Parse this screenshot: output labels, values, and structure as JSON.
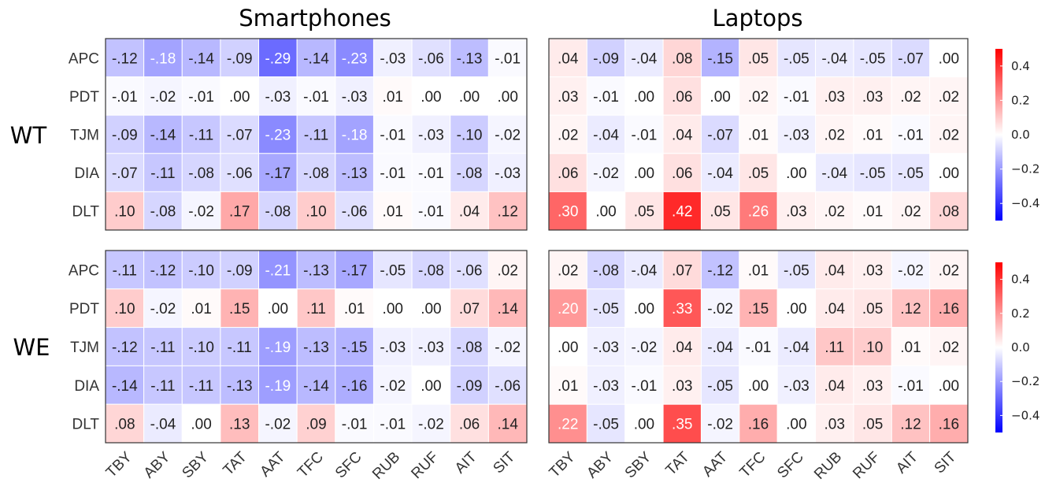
{
  "chart_data": {
    "type": "heatmap",
    "panel_titles": [
      "Smartphones",
      "Laptops"
    ],
    "row_groups": [
      "WT",
      "WE"
    ],
    "columns": [
      "TBY",
      "ABY",
      "SBY",
      "TAT",
      "AAT",
      "TFC",
      "SFC",
      "RUB",
      "RUF",
      "AIT",
      "SIT"
    ],
    "rows": [
      "APC",
      "PDT",
      "TJM",
      "DIA",
      "DLT"
    ],
    "color_scale": {
      "min": -0.5,
      "max": 0.5,
      "low": "#0000ff",
      "mid": "#ffffff",
      "high": "#ff0000"
    },
    "colorbar_ticks": [
      {
        "value": 0.4,
        "label": "0.4"
      },
      {
        "value": 0.2,
        "label": "0.2"
      },
      {
        "value": 0.0,
        "label": "0.0"
      },
      {
        "value": -0.2,
        "label": "−0.2"
      },
      {
        "value": -0.4,
        "label": "−0.4"
      }
    ],
    "panels": [
      {
        "group": "WT",
        "device": "Smartphones",
        "values": [
          [
            -0.12,
            -0.18,
            -0.14,
            -0.09,
            -0.29,
            -0.14,
            -0.23,
            -0.03,
            -0.06,
            -0.13,
            -0.01
          ],
          [
            -0.01,
            -0.02,
            -0.01,
            0.0,
            -0.03,
            -0.01,
            -0.03,
            0.01,
            0.0,
            0.0,
            0.0
          ],
          [
            -0.09,
            -0.14,
            -0.11,
            -0.07,
            -0.23,
            -0.11,
            -0.18,
            -0.01,
            -0.03,
            -0.1,
            -0.02
          ],
          [
            -0.07,
            -0.11,
            -0.08,
            -0.06,
            -0.17,
            -0.08,
            -0.13,
            -0.01,
            -0.01,
            -0.08,
            -0.03
          ],
          [
            0.1,
            -0.08,
            -0.02,
            0.17,
            -0.08,
            0.1,
            -0.06,
            0.01,
            -0.01,
            0.04,
            0.12
          ]
        ],
        "labels": [
          [
            "-.12",
            "-.18",
            "-.14",
            "-.09",
            "-.29",
            "-.14",
            "-.23",
            "-.03",
            "-.06",
            "-.13",
            "-.01"
          ],
          [
            "-.01",
            "-.02",
            "-.01",
            ".00",
            "-.03",
            "-.01",
            "-.03",
            ".01",
            ".00",
            ".00",
            ".00"
          ],
          [
            "-.09",
            "-.14",
            "-.11",
            "-.07",
            "-.23",
            "-.11",
            "-.18",
            "-.01",
            "-.03",
            "-.10",
            "-.02"
          ],
          [
            "-.07",
            "-.11",
            "-.08",
            "-.06",
            "-.17",
            "-.08",
            "-.13",
            "-.01",
            "-.01",
            "-.08",
            "-.03"
          ],
          [
            ".10",
            "-.08",
            "-.02",
            ".17",
            "-.08",
            ".10",
            "-.06",
            ".01",
            "-.01",
            ".04",
            ".12"
          ]
        ]
      },
      {
        "group": "WT",
        "device": "Laptops",
        "values": [
          [
            0.04,
            -0.09,
            -0.04,
            0.08,
            -0.15,
            0.05,
            -0.05,
            -0.04,
            -0.05,
            -0.07,
            0.0
          ],
          [
            0.03,
            -0.01,
            0.0,
            0.06,
            0.0,
            0.02,
            -0.01,
            0.03,
            0.03,
            0.02,
            0.02
          ],
          [
            0.02,
            -0.04,
            -0.01,
            0.04,
            -0.07,
            0.01,
            -0.03,
            0.02,
            0.01,
            -0.01,
            0.02
          ],
          [
            0.06,
            -0.02,
            0.0,
            0.06,
            -0.04,
            0.05,
            0.0,
            -0.04,
            -0.05,
            -0.05,
            0.0
          ],
          [
            0.3,
            0.0,
            0.05,
            0.42,
            0.05,
            0.26,
            0.03,
            0.02,
            0.01,
            0.02,
            0.08
          ]
        ],
        "labels": [
          [
            ".04",
            "-.09",
            "-.04",
            ".08",
            "-.15",
            ".05",
            "-.05",
            "-.04",
            "-.05",
            "-.07",
            ".00"
          ],
          [
            ".03",
            "-.01",
            ".00",
            ".06",
            ".00",
            ".02",
            "-.01",
            ".03",
            ".03",
            ".02",
            ".02"
          ],
          [
            ".02",
            "-.04",
            "-.01",
            ".04",
            "-.07",
            ".01",
            "-.03",
            ".02",
            ".01",
            "-.01",
            ".02"
          ],
          [
            ".06",
            "-.02",
            ".00",
            ".06",
            "-.04",
            ".05",
            ".00",
            "-.04",
            "-.05",
            "-.05",
            ".00"
          ],
          [
            ".30",
            ".00",
            ".05",
            ".42",
            ".05",
            ".26",
            ".03",
            ".02",
            ".01",
            ".02",
            ".08"
          ]
        ]
      },
      {
        "group": "WE",
        "device": "Smartphones",
        "values": [
          [
            -0.11,
            -0.12,
            -0.1,
            -0.09,
            -0.21,
            -0.13,
            -0.17,
            -0.05,
            -0.08,
            -0.06,
            0.02
          ],
          [
            0.1,
            -0.02,
            0.01,
            0.15,
            0.0,
            0.11,
            0.01,
            0.0,
            0.0,
            0.07,
            0.14
          ],
          [
            -0.12,
            -0.11,
            -0.1,
            -0.11,
            -0.19,
            -0.13,
            -0.15,
            -0.03,
            -0.03,
            -0.08,
            -0.02
          ],
          [
            -0.14,
            -0.11,
            -0.11,
            -0.13,
            -0.19,
            -0.14,
            -0.16,
            -0.02,
            0.0,
            -0.09,
            -0.06
          ],
          [
            0.08,
            -0.04,
            0.0,
            0.13,
            -0.02,
            0.09,
            -0.01,
            -0.01,
            -0.02,
            0.06,
            0.14
          ]
        ],
        "labels": [
          [
            "-.11",
            "-.12",
            "-.10",
            "-.09",
            "-.21",
            "-.13",
            "-.17",
            "-.05",
            "-.08",
            "-.06",
            ".02"
          ],
          [
            ".10",
            "-.02",
            ".01",
            ".15",
            ".00",
            ".11",
            ".01",
            ".00",
            ".00",
            ".07",
            ".14"
          ],
          [
            "-.12",
            "-.11",
            "-.10",
            "-.11",
            "-.19",
            "-.13",
            "-.15",
            "-.03",
            "-.03",
            "-.08",
            "-.02"
          ],
          [
            "-.14",
            "-.11",
            "-.11",
            "-.13",
            "-.19",
            "-.14",
            "-.16",
            "-.02",
            ".00",
            "-.09",
            "-.06"
          ],
          [
            ".08",
            "-.04",
            ".00",
            ".13",
            "-.02",
            ".09",
            "-.01",
            "-.01",
            "-.02",
            ".06",
            ".14"
          ]
        ]
      },
      {
        "group": "WE",
        "device": "Laptops",
        "values": [
          [
            0.02,
            -0.08,
            -0.04,
            0.07,
            -0.12,
            0.01,
            -0.05,
            0.04,
            0.03,
            -0.02,
            0.02
          ],
          [
            0.2,
            -0.05,
            0.0,
            0.33,
            -0.02,
            0.15,
            0.0,
            0.04,
            0.05,
            0.12,
            0.16
          ],
          [
            0.0,
            -0.03,
            -0.02,
            0.04,
            -0.04,
            -0.01,
            -0.04,
            0.11,
            0.1,
            0.01,
            0.02
          ],
          [
            0.01,
            -0.03,
            -0.01,
            0.03,
            -0.05,
            0.0,
            -0.03,
            0.04,
            0.03,
            -0.01,
            0.0
          ],
          [
            0.22,
            -0.05,
            0.0,
            0.35,
            -0.02,
            0.16,
            0.0,
            0.03,
            0.05,
            0.12,
            0.16
          ]
        ],
        "labels": [
          [
            ".02",
            "-.08",
            "-.04",
            ".07",
            "-.12",
            ".01",
            "-.05",
            ".04",
            ".03",
            "-.02",
            ".02"
          ],
          [
            ".20",
            "-.05",
            ".00",
            ".33",
            "-.02",
            ".15",
            ".00",
            ".04",
            ".05",
            ".12",
            ".16"
          ],
          [
            ".00",
            "-.03",
            "-.02",
            ".04",
            "-.04",
            "-.01",
            "-.04",
            ".11",
            ".10",
            ".01",
            ".02"
          ],
          [
            ".01",
            "-.03",
            "-.01",
            ".03",
            "-.05",
            ".00",
            "-.03",
            ".04",
            ".03",
            "-.01",
            ".00"
          ],
          [
            ".22",
            "-.05",
            ".00",
            ".35",
            "-.02",
            ".16",
            ".00",
            ".03",
            ".05",
            ".12",
            ".16"
          ]
        ]
      }
    ]
  }
}
